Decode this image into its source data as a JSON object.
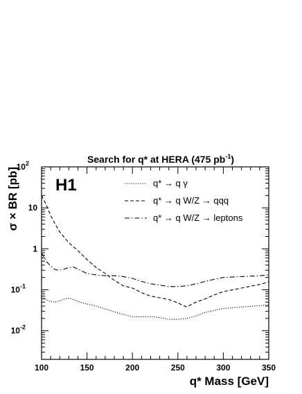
{
  "chart_data": {
    "type": "line",
    "title": "Search for q* at HERA (475 pb",
    "title_sup": "-1",
    "title_close": ")",
    "experiment_tag": "H1",
    "xlabel": "q* Mass [GeV]",
    "ylabel": "σ × BR [pb]",
    "xlim": [
      100,
      350
    ],
    "ylim": [
      0.002,
      100
    ],
    "yscale": "log",
    "grid": false,
    "legend_position": "top-right",
    "x_ticks": [
      "100",
      "150",
      "200",
      "250",
      "300",
      "350"
    ],
    "y_ticks": [
      {
        "base": "10",
        "exp": "-2",
        "value": 0.01
      },
      {
        "base": "10",
        "exp": "-1",
        "value": 0.1
      },
      {
        "base": "1",
        "exp": "",
        "value": 1
      },
      {
        "base": "10",
        "exp": "",
        "value": 10
      },
      {
        "base": "10",
        "exp": "2",
        "value": 100
      }
    ],
    "series": [
      {
        "name": "q* → q γ",
        "style": "dotted",
        "x": [
          100,
          105,
          110,
          115,
          120,
          125,
          130,
          135,
          140,
          145,
          150,
          160,
          170,
          180,
          190,
          200,
          210,
          220,
          230,
          240,
          250,
          260,
          270,
          280,
          300,
          320,
          340,
          350
        ],
        "y": [
          0.07,
          0.057,
          0.052,
          0.05,
          0.054,
          0.059,
          0.062,
          0.058,
          0.052,
          0.048,
          0.045,
          0.04,
          0.034,
          0.029,
          0.025,
          0.022,
          0.022,
          0.022,
          0.021,
          0.019,
          0.019,
          0.02,
          0.023,
          0.028,
          0.035,
          0.038,
          0.041,
          0.043
        ]
      },
      {
        "name": "q* → q W/Z → qqq",
        "style": "dashed",
        "x": [
          100,
          105,
          110,
          115,
          120,
          125,
          130,
          140,
          150,
          160,
          170,
          180,
          190,
          200,
          210,
          220,
          230,
          240,
          250,
          255,
          260,
          265,
          270,
          280,
          290,
          300,
          320,
          340,
          350
        ],
        "y": [
          20,
          12,
          6.5,
          4,
          2.6,
          1.9,
          1.4,
          0.9,
          0.55,
          0.35,
          0.25,
          0.17,
          0.125,
          0.11,
          0.085,
          0.07,
          0.064,
          0.058,
          0.048,
          0.042,
          0.038,
          0.044,
          0.05,
          0.06,
          0.075,
          0.09,
          0.11,
          0.135,
          0.155
        ]
      },
      {
        "name": "q* → q W/Z → leptons",
        "style": "dashdot",
        "x": [
          100,
          105,
          110,
          115,
          120,
          125,
          130,
          135,
          140,
          150,
          160,
          170,
          180,
          190,
          200,
          210,
          220,
          230,
          240,
          250,
          260,
          270,
          280,
          290,
          300,
          320,
          340,
          350
        ],
        "y": [
          0.8,
          0.5,
          0.38,
          0.31,
          0.3,
          0.32,
          0.35,
          0.36,
          0.32,
          0.25,
          0.23,
          0.22,
          0.22,
          0.21,
          0.19,
          0.16,
          0.14,
          0.13,
          0.12,
          0.12,
          0.125,
          0.14,
          0.16,
          0.18,
          0.2,
          0.21,
          0.22,
          0.23
        ]
      }
    ]
  }
}
